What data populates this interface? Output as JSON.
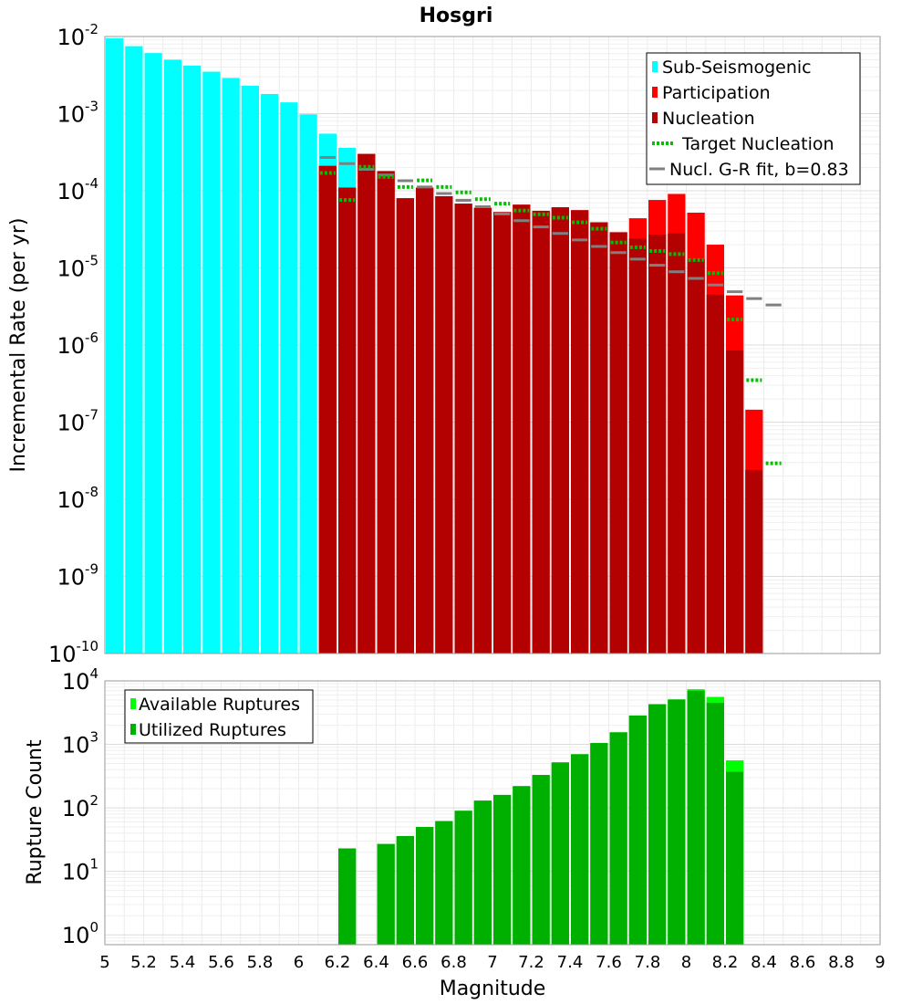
{
  "chart_data": [
    {
      "type": "bar",
      "title": "Hosgri",
      "ylabel": "Incremental Rate (per yr)",
      "yscale": "log",
      "ylim": [
        1e-10,
        0.01
      ],
      "y_tick_labels": [
        {
          "base": "10",
          "exp": "-10"
        },
        {
          "base": "10",
          "exp": "-9"
        },
        {
          "base": "10",
          "exp": "-8"
        },
        {
          "base": "10",
          "exp": "-7"
        },
        {
          "base": "10",
          "exp": "-6"
        },
        {
          "base": "10",
          "exp": "-5"
        },
        {
          "base": "10",
          "exp": "-4"
        },
        {
          "base": "10",
          "exp": "-3"
        },
        {
          "base": "10",
          "exp": "-2"
        }
      ],
      "grid": true,
      "legend_position": "top-right",
      "legend": [
        "Sub-Seismogenic",
        "Participation",
        "Nucleation",
        "Target Nucleation",
        "Nucl. G-R fit, b=0.83"
      ],
      "series": [
        {
          "name": "Sub-Seismogenic",
          "color": "#00ffff",
          "points": [
            [
              5.05,
              0.0095
            ],
            [
              5.15,
              0.0075
            ],
            [
              5.25,
              0.0061
            ],
            [
              5.35,
              0.005
            ],
            [
              5.45,
              0.0042
            ],
            [
              5.55,
              0.0035
            ],
            [
              5.65,
              0.0029
            ],
            [
              5.75,
              0.0023
            ],
            [
              5.85,
              0.0018
            ],
            [
              5.95,
              0.0014
            ],
            [
              6.05,
              0.00098
            ],
            [
              6.15,
              0.00055
            ],
            [
              6.25,
              0.00036
            ]
          ]
        },
        {
          "name": "Participation",
          "color": "#ff0000",
          "points": [
            [
              6.15,
              0.00021
            ],
            [
              6.25,
              0.00011
            ],
            [
              6.35,
              0.0003
            ],
            [
              6.45,
              0.00018
            ],
            [
              6.55,
              8e-05
            ],
            [
              6.65,
              0.00011
            ],
            [
              6.75,
              8.5e-05
            ],
            [
              6.85,
              6.8e-05
            ],
            [
              6.95,
              6e-05
            ],
            [
              7.05,
              5.3e-05
            ],
            [
              7.15,
              6.6e-05
            ],
            [
              7.25,
              5.5e-05
            ],
            [
              7.35,
              6.1e-05
            ],
            [
              7.45,
              5.6e-05
            ],
            [
              7.55,
              3.9e-05
            ],
            [
              7.65,
              2.9e-05
            ],
            [
              7.75,
              4.4e-05
            ],
            [
              7.85,
              7.6e-05
            ],
            [
              7.95,
              9.1e-05
            ],
            [
              8.05,
              5.2e-05
            ],
            [
              8.15,
              2e-05
            ],
            [
              8.25,
              4.4e-06
            ],
            [
              8.35,
              1.45e-07
            ]
          ]
        },
        {
          "name": "Nucleation",
          "color": "#b30000",
          "points": [
            [
              6.15,
              0.00021
            ],
            [
              6.25,
              0.00011
            ],
            [
              6.35,
              0.0003
            ],
            [
              6.45,
              0.00018
            ],
            [
              6.55,
              8e-05
            ],
            [
              6.65,
              0.00011
            ],
            [
              6.75,
              8.5e-05
            ],
            [
              6.85,
              6.8e-05
            ],
            [
              6.95,
              6e-05
            ],
            [
              7.05,
              5.3e-05
            ],
            [
              7.15,
              6.6e-05
            ],
            [
              7.25,
              5.5e-05
            ],
            [
              7.35,
              6.1e-05
            ],
            [
              7.45,
              5.6e-05
            ],
            [
              7.55,
              3.9e-05
            ],
            [
              7.65,
              2.9e-05
            ],
            [
              7.75,
              2.4e-05
            ],
            [
              7.85,
              2.7e-05
            ],
            [
              7.95,
              2.8e-05
            ],
            [
              8.05,
              1.3e-05
            ],
            [
              8.15,
              4.5e-06
            ],
            [
              8.25,
              8.5e-07
            ],
            [
              8.35,
              2.4e-08
            ]
          ]
        },
        {
          "name": "Target Nucleation",
          "color": "#00c000",
          "points": [
            [
              6.15,
              0.000175
            ],
            [
              6.25,
              7.8e-05
            ],
            [
              6.35,
              0.00021
            ],
            [
              6.45,
              0.000155
            ],
            [
              6.55,
              0.000115
            ],
            [
              6.65,
              0.00014
            ],
            [
              6.75,
              0.000115
            ],
            [
              6.85,
              9.8e-05
            ],
            [
              6.95,
              8e-05
            ],
            [
              7.05,
              7e-05
            ],
            [
              7.15,
              5.7e-05
            ],
            [
              7.25,
              5.1e-05
            ],
            [
              7.35,
              4.6e-05
            ],
            [
              7.45,
              4e-05
            ],
            [
              7.55,
              3.3e-05
            ],
            [
              7.65,
              2.2e-05
            ],
            [
              7.75,
              1.9e-05
            ],
            [
              7.85,
              1.7e-05
            ],
            [
              7.95,
              1.55e-05
            ],
            [
              8.05,
              1.3e-05
            ],
            [
              8.15,
              8.8e-06
            ],
            [
              8.25,
              2.2e-06
            ],
            [
              8.35,
              3.6e-07
            ],
            [
              8.45,
              3e-08
            ]
          ]
        },
        {
          "name": "Nucl. G-R fit, b=0.83",
          "color": "#808080",
          "points": [
            [
              6.15,
              0.00027
            ],
            [
              6.25,
              0.000225
            ],
            [
              6.35,
              0.00019
            ],
            [
              6.45,
              0.00016
            ],
            [
              6.55,
              0.000135
            ],
            [
              6.65,
              0.000112
            ],
            [
              6.75,
              9.2e-05
            ],
            [
              6.85,
              7.5e-05
            ],
            [
              6.95,
              6.2e-05
            ],
            [
              7.05,
              5e-05
            ],
            [
              7.15,
              4.1e-05
            ],
            [
              7.25,
              3.4e-05
            ],
            [
              7.35,
              2.8e-05
            ],
            [
              7.45,
              2.3e-05
            ],
            [
              7.55,
              1.9e-05
            ],
            [
              7.65,
              1.58e-05
            ],
            [
              7.75,
              1.3e-05
            ],
            [
              7.85,
              1.08e-05
            ],
            [
              7.95,
              8.9e-06
            ],
            [
              8.05,
              7.3e-06
            ],
            [
              8.15,
              6e-06
            ],
            [
              8.25,
              4.9e-06
            ],
            [
              8.35,
              4e-06
            ],
            [
              8.45,
              3.3e-06
            ]
          ]
        }
      ]
    },
    {
      "type": "bar",
      "xlabel": "Magnitude",
      "ylabel": "Rupture Count",
      "yscale": "log",
      "ylim": [
        0.7,
        10000
      ],
      "xlim": [
        5,
        9
      ],
      "x_ticks": [
        "5",
        "5.2",
        "5.4",
        "5.6",
        "5.8",
        "6",
        "6.2",
        "6.4",
        "6.6",
        "6.8",
        "7",
        "7.2",
        "7.4",
        "7.6",
        "7.8",
        "8",
        "8.2",
        "8.4",
        "8.6",
        "8.8",
        "9"
      ],
      "y_tick_labels": [
        {
          "base": "10",
          "exp": "0"
        },
        {
          "base": "10",
          "exp": "1"
        },
        {
          "base": "10",
          "exp": "2"
        },
        {
          "base": "10",
          "exp": "3"
        },
        {
          "base": "10",
          "exp": "4"
        }
      ],
      "grid": true,
      "legend_position": "top-left",
      "legend": [
        "Available Ruptures",
        "Utilized Ruptures"
      ],
      "series": [
        {
          "name": "Available Ruptures",
          "color": "#00ff00",
          "points": [
            [
              6.25,
              23
            ],
            [
              6.45,
              27
            ],
            [
              6.55,
              36
            ],
            [
              6.65,
              50
            ],
            [
              6.75,
              62
            ],
            [
              6.85,
              90
            ],
            [
              6.95,
              130
            ],
            [
              7.05,
              160
            ],
            [
              7.15,
              220
            ],
            [
              7.25,
              330
            ],
            [
              7.35,
              520
            ],
            [
              7.45,
              700
            ],
            [
              7.55,
              1050
            ],
            [
              7.65,
              1550
            ],
            [
              7.75,
              2850
            ],
            [
              7.85,
              4300
            ],
            [
              7.95,
              5100
            ],
            [
              8.05,
              7400
            ],
            [
              8.15,
              5600
            ],
            [
              8.25,
              560
            ]
          ]
        },
        {
          "name": "Utilized Ruptures",
          "color": "#00b000",
          "points": [
            [
              6.25,
              23
            ],
            [
              6.45,
              27
            ],
            [
              6.55,
              36
            ],
            [
              6.65,
              50
            ],
            [
              6.75,
              62
            ],
            [
              6.85,
              90
            ],
            [
              6.95,
              130
            ],
            [
              7.05,
              160
            ],
            [
              7.15,
              220
            ],
            [
              7.25,
              330
            ],
            [
              7.35,
              520
            ],
            [
              7.45,
              700
            ],
            [
              7.55,
              1050
            ],
            [
              7.65,
              1550
            ],
            [
              7.75,
              2850
            ],
            [
              7.85,
              4300
            ],
            [
              7.95,
              5100
            ],
            [
              8.05,
              7000
            ],
            [
              8.15,
              4500
            ],
            [
              8.25,
              370
            ]
          ]
        }
      ]
    }
  ]
}
